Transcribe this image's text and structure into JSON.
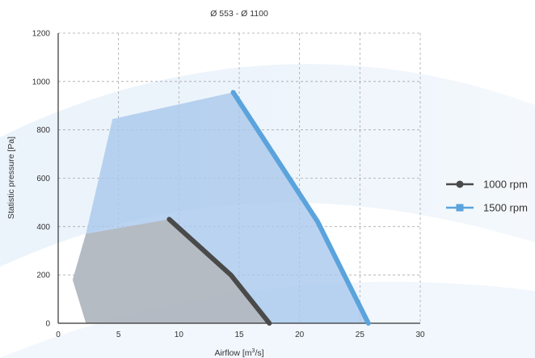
{
  "chart_data": {
    "type": "line",
    "title": "Ø 553 - Ø 1100",
    "xlabel": "Airflow",
    "xlabel_unit_prefix": "[m",
    "xlabel_unit_sup": "3",
    "xlabel_unit_suffix": "/s]",
    "ylabel": "Statistic pressure [Pa]",
    "xlim": [
      0,
      30
    ],
    "ylim": [
      0,
      1200
    ],
    "x_ticks": [
      0,
      5,
      10,
      15,
      20,
      25,
      30
    ],
    "y_ticks": [
      0,
      200,
      400,
      600,
      800,
      1000,
      1200
    ],
    "grid": true,
    "legend_position": "right",
    "series": [
      {
        "name": "1000 rpm",
        "color": "#4a4a4a",
        "marker": "circle",
        "x": [
          9.2,
          14.3,
          17.5
        ],
        "y": [
          430,
          200,
          0
        ]
      },
      {
        "name": "1500 rpm",
        "color": "#5ba3dc",
        "marker": "square",
        "x": [
          14.5,
          21.5,
          25.7
        ],
        "y": [
          955,
          420,
          0
        ]
      }
    ],
    "regions": [
      {
        "name": "1500 rpm operating area",
        "color": "#a9c8ec",
        "x": [
          4.5,
          14.5,
          21.5,
          25.7,
          2.3,
          1.2,
          2.3
        ],
        "y": [
          845,
          955,
          420,
          0,
          0,
          180,
          370
        ]
      },
      {
        "name": "1000 rpm operating area",
        "color": "#b4b6bb",
        "x": [
          2.3,
          9.2,
          14.3,
          17.5,
          2.3,
          1.2
        ],
        "y": [
          370,
          430,
          200,
          0,
          0,
          180
        ]
      }
    ]
  }
}
